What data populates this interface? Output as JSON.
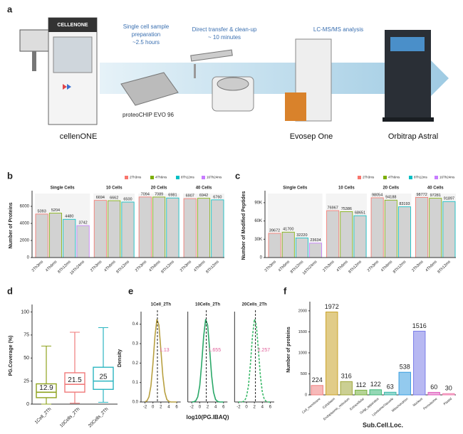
{
  "workflow": {
    "label": "a",
    "logo": "CELLENONE",
    "steps": [
      [
        "Single cell sample",
        "preparation",
        "~2.5 hours"
      ],
      [
        "Direct transfer & clean-up",
        "~ 10 minutes"
      ],
      [
        "LC-MS/MS analysis"
      ]
    ],
    "devices": [
      "cellenONE",
      "proteoCHIP EVO 96",
      "Evosep One",
      "Orbitrap Astral"
    ]
  },
  "chart_data": [
    {
      "type": "faceted_bar",
      "label": "b",
      "ylabel": "Number of Proteins",
      "legend": [
        {
          "name": "2Th3ms",
          "color": "#f8766d"
        },
        {
          "name": "4Th6ms",
          "color": "#7cae00"
        },
        {
          "name": "8Th12ms",
          "color": "#00bfc4"
        },
        {
          "name": "16Th24ms",
          "color": "#c77cff"
        }
      ],
      "facets": [
        {
          "name": "Single Cells",
          "categories": [
            "2Th3ms",
            "4Th6ms",
            "8Th12ms",
            "16Th24ms"
          ],
          "values": [
            5093,
            5204,
            4480,
            3742
          ]
        },
        {
          "name": "10 Cells",
          "categories": [
            "2Th3ms",
            "4Th6ms",
            "8Th12ms"
          ],
          "values": [
            6694,
            6662,
            6500
          ]
        },
        {
          "name": "20 Cells",
          "categories": [
            "2Th3ms",
            "4Th6ms",
            "8Th12ms"
          ],
          "values": [
            7094,
            7089,
            6981
          ]
        },
        {
          "name": "40 Cells",
          "categories": [
            "2Th3ms",
            "4Th6ms",
            "8Th12ms"
          ],
          "values": [
            6907,
            6942,
            6760
          ]
        }
      ],
      "ylim": [
        0,
        7500
      ],
      "yticks": [
        0,
        2000,
        4000,
        6000
      ]
    },
    {
      "type": "faceted_bar",
      "label": "c",
      "ylabel": "Number of Modified Peptides",
      "legend": [
        {
          "name": "2Th3ms",
          "color": "#f8766d"
        },
        {
          "name": "4Th6ms",
          "color": "#7cae00"
        },
        {
          "name": "8Th12ms",
          "color": "#00bfc4"
        },
        {
          "name": "16Th24ms",
          "color": "#c77cff"
        }
      ],
      "facets": [
        {
          "name": "Single Cells",
          "categories": [
            "2Th3ms",
            "4Th6ms",
            "8Th12ms",
            "16Th24ms"
          ],
          "values": [
            39672,
            41700,
            32220,
            23634
          ]
        },
        {
          "name": "10 Cells",
          "categories": [
            "2Th3ms",
            "4Th6ms",
            "8Th12ms"
          ],
          "values": [
            76967,
            75386,
            68651
          ]
        },
        {
          "name": "20 Cells",
          "categories": [
            "2Th3ms",
            "4Th6ms",
            "8Th12ms"
          ],
          "values": [
            98054,
            94188,
            83193
          ]
        },
        {
          "name": "40 Cells",
          "categories": [
            "2Th3ms",
            "4Th6ms",
            "8Th12ms"
          ],
          "values": [
            98772,
            97281,
            91897
          ]
        }
      ],
      "ylim": [
        0,
        105000
      ],
      "yticks": [
        0,
        {
          "value": 30000,
          "label": "30K"
        },
        {
          "value": 60000,
          "label": "60K"
        },
        {
          "value": 90000,
          "label": "90K"
        }
      ]
    },
    {
      "type": "box",
      "label": "d",
      "ylabel": "PG.Coverage (%)",
      "categories": [
        "1Cell_2Th",
        "10Cells_2Th",
        "20Cells_2Th"
      ],
      "colors": [
        "#8fa31e",
        "#f07a7a",
        "#2bb5c0"
      ],
      "boxes": [
        {
          "min": 0,
          "q1": 7,
          "median": 12.9,
          "q3": 22,
          "max": 63
        },
        {
          "min": 1,
          "q1": 13,
          "median": 21.5,
          "q3": 34,
          "max": 78
        },
        {
          "min": 2,
          "q1": 16,
          "median": 25,
          "q3": 40,
          "max": 83
        }
      ],
      "ylim": [
        0,
        105
      ],
      "yticks": [
        0,
        25,
        50,
        75,
        100
      ]
    },
    {
      "type": "density",
      "label": "e",
      "xlabel": "log10(PG.IBAQ)",
      "ylabel": "Density",
      "x": [
        -2,
        -1.5,
        -1,
        -0.5,
        0,
        0.5,
        1,
        1.5,
        2,
        2.5,
        3,
        3.5,
        4,
        4.5,
        5,
        5.5,
        6
      ],
      "panels": [
        {
          "title": "1Cell_2Th",
          "median": 1.13,
          "color": "#b8a040",
          "dashed": false,
          "values": [
            0.001,
            0.006,
            0.026,
            0.083,
            0.196,
            0.337,
            0.426,
            0.395,
            0.27,
            0.135,
            0.05,
            0.013,
            0.003,
            0,
            0,
            0,
            0
          ]
        },
        {
          "title": "10Cells_2Th",
          "median": 1.655,
          "color": "#2aa868",
          "dashed": false,
          "values": [
            0,
            0.001,
            0.006,
            0.026,
            0.083,
            0.196,
            0.337,
            0.426,
            0.395,
            0.27,
            0.135,
            0.05,
            0.013,
            0.003,
            0,
            0,
            0
          ]
        },
        {
          "title": "20Cells_2Th",
          "median": 2.257,
          "color": "#3cba6a",
          "dashed": true,
          "values": [
            0,
            0,
            0.001,
            0.006,
            0.026,
            0.083,
            0.196,
            0.337,
            0.426,
            0.395,
            0.27,
            0.135,
            0.05,
            0.013,
            0.003,
            0,
            0
          ]
        }
      ],
      "xlim": [
        -3,
        7
      ],
      "xticks": [
        -2,
        0,
        2,
        4,
        6
      ],
      "ylim": [
        0,
        0.45
      ],
      "yticks": [
        {
          "value": 0,
          "label": "0.0"
        },
        0.1,
        0.2,
        0.3,
        0.4
      ]
    },
    {
      "type": "bar",
      "label": "f",
      "ylabel": "Number of proteins",
      "xlabel": "Sub.Cell.Loc.",
      "categories": [
        "Cell_membrane",
        "Cytoplasm",
        "Endoplasmic_reticulum",
        "Extracellular",
        "Golgi_apparatus",
        "Lysosome/Vacuole",
        "Mitochondrion",
        "Nucleus",
        "Peroxisome",
        "Plastid"
      ],
      "values": [
        224,
        1972,
        316,
        112,
        122,
        63,
        538,
        1516,
        60,
        30
      ],
      "colors": [
        "#f08080",
        "#c9a227",
        "#a0a83a",
        "#78b040",
        "#3cb878",
        "#3cb8a8",
        "#3a9ee0",
        "#7b7ee8",
        "#e060c0",
        "#f080b0"
      ],
      "ylim": [
        0,
        2150
      ],
      "yticks": [
        0,
        500,
        1000,
        1500,
        2000
      ]
    }
  ]
}
